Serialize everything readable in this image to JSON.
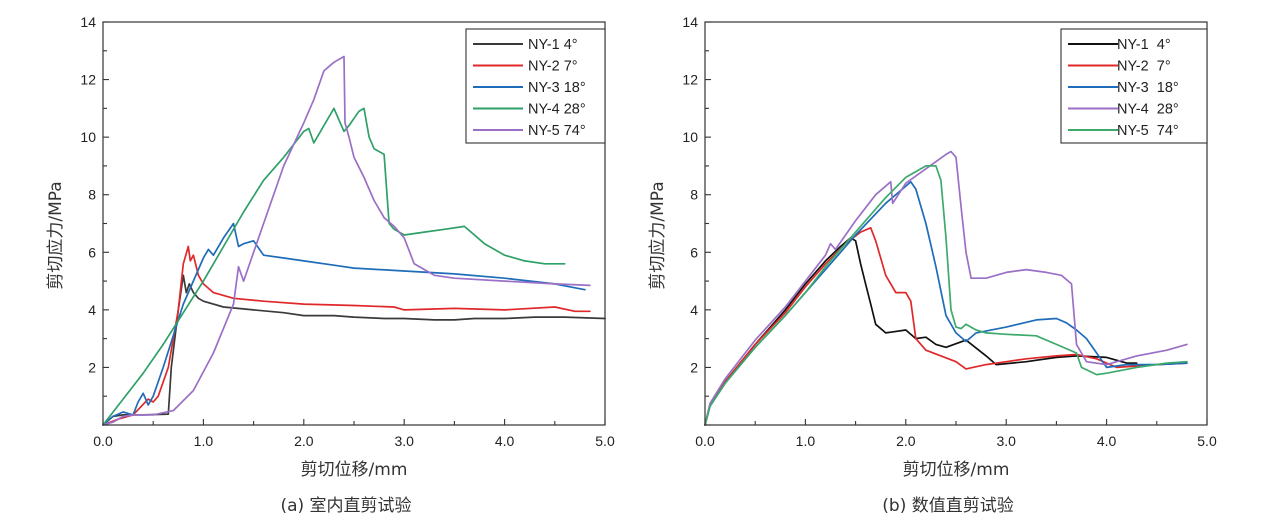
{
  "chart_data": [
    {
      "id": "a",
      "type": "line",
      "caption": "(a) 室内直剪试验",
      "xlabel": "剪切位移/mm",
      "ylabel": "剪切应力/MPa",
      "xlim": [
        0,
        5
      ],
      "ylim": [
        0,
        14
      ],
      "xticks": [
        "0.0",
        "1.0",
        "2.0",
        "3.0",
        "4.0",
        "5.0"
      ],
      "yticks": [
        "2",
        "4",
        "6",
        "8",
        "10",
        "12",
        "14"
      ],
      "legend_position": "top-right",
      "series": [
        {
          "name": "NY-1 4°",
          "color": "#3a3a3a",
          "x": [
            0,
            0.1,
            0.2,
            0.4,
            0.65,
            0.68,
            0.75,
            0.8,
            0.83,
            0.86,
            0.9,
            0.95,
            1.0,
            1.2,
            1.5,
            1.8,
            2.0,
            2.3,
            2.5,
            2.8,
            3.0,
            3.3,
            3.5,
            3.7,
            4.0,
            4.3,
            4.6,
            5.0
          ],
          "y": [
            0,
            0.3,
            0.35,
            0.35,
            0.38,
            2.0,
            4.0,
            5.2,
            4.6,
            4.9,
            4.6,
            4.4,
            4.3,
            4.1,
            4.0,
            3.9,
            3.8,
            3.8,
            3.75,
            3.7,
            3.7,
            3.65,
            3.65,
            3.7,
            3.7,
            3.75,
            3.75,
            3.7
          ]
        },
        {
          "name": "NY-2 7°",
          "color": "#e0282a",
          "x": [
            0,
            0.15,
            0.3,
            0.45,
            0.5,
            0.55,
            0.65,
            0.75,
            0.8,
            0.85,
            0.87,
            0.9,
            0.95,
            1.0,
            1.1,
            1.3,
            1.6,
            2.0,
            2.5,
            2.9,
            3.0,
            3.5,
            4.0,
            4.5,
            4.7,
            4.85
          ],
          "y": [
            0,
            0.2,
            0.35,
            0.9,
            0.8,
            1.0,
            2.0,
            4.0,
            5.6,
            6.2,
            5.7,
            5.9,
            5.2,
            4.9,
            4.6,
            4.4,
            4.3,
            4.2,
            4.15,
            4.1,
            4.0,
            4.05,
            4.0,
            4.1,
            3.95,
            3.95
          ]
        },
        {
          "name": "NY-3 18°",
          "color": "#1f6cb8",
          "x": [
            0,
            0.1,
            0.2,
            0.3,
            0.35,
            0.4,
            0.45,
            0.5,
            0.6,
            0.8,
            1.0,
            1.05,
            1.1,
            1.2,
            1.3,
            1.35,
            1.4,
            1.5,
            1.6,
            1.8,
            2.0,
            2.3,
            2.5,
            3.0,
            3.5,
            4.0,
            4.5,
            4.8
          ],
          "y": [
            0,
            0.3,
            0.45,
            0.35,
            0.8,
            1.1,
            0.7,
            1.0,
            2.0,
            4.2,
            5.8,
            6.1,
            5.9,
            6.5,
            7.0,
            6.2,
            6.3,
            6.4,
            5.9,
            5.8,
            5.7,
            5.55,
            5.45,
            5.35,
            5.25,
            5.1,
            4.9,
            4.7
          ]
        },
        {
          "name": "NY-4 28°",
          "color": "#2ea068",
          "x": [
            0,
            0.2,
            0.4,
            0.6,
            0.8,
            1.0,
            1.2,
            1.4,
            1.6,
            1.8,
            2.0,
            2.05,
            2.1,
            2.2,
            2.3,
            2.4,
            2.45,
            2.55,
            2.6,
            2.65,
            2.7,
            2.8,
            2.85,
            2.9,
            3.0,
            3.2,
            3.4,
            3.6,
            3.8,
            4.0,
            4.2,
            4.4,
            4.6
          ],
          "y": [
            0,
            0.9,
            1.8,
            2.8,
            3.9,
            5.0,
            6.2,
            7.4,
            8.5,
            9.3,
            10.2,
            10.3,
            9.8,
            10.4,
            11.0,
            10.2,
            10.4,
            10.9,
            11.0,
            10.0,
            9.6,
            9.4,
            7.0,
            6.8,
            6.6,
            6.7,
            6.8,
            6.9,
            6.3,
            5.9,
            5.7,
            5.6,
            5.6
          ]
        },
        {
          "name": "NY-5 74°",
          "color": "#9b6fc6",
          "x": [
            0,
            0.1,
            0.2,
            0.3,
            0.5,
            0.7,
            0.9,
            1.1,
            1.3,
            1.35,
            1.4,
            1.6,
            1.8,
            2.0,
            2.1,
            2.2,
            2.3,
            2.4,
            2.41,
            2.45,
            2.5,
            2.6,
            2.7,
            2.8,
            2.9,
            3.0,
            3.1,
            3.3,
            3.5,
            4.0,
            4.5,
            4.85
          ],
          "y": [
            0,
            0.1,
            0.3,
            0.35,
            0.35,
            0.5,
            1.2,
            2.5,
            4.2,
            5.5,
            5.0,
            7.0,
            9.0,
            10.5,
            11.3,
            12.3,
            12.6,
            12.8,
            10.5,
            10.0,
            9.3,
            8.6,
            7.8,
            7.2,
            6.9,
            6.5,
            5.6,
            5.2,
            5.1,
            5.0,
            4.9,
            4.85
          ]
        }
      ]
    },
    {
      "id": "b",
      "type": "line",
      "caption": "(b) 数值直剪试验",
      "xlabel": "剪切位移/mm",
      "ylabel": "剪切应力/MPa",
      "xlim": [
        0,
        5
      ],
      "ylim": [
        0,
        14
      ],
      "xticks": [
        "0.0",
        "1.0",
        "2.0",
        "3.0",
        "4.0",
        "5.0"
      ],
      "yticks": [
        "2",
        "4",
        "6",
        "8",
        "10",
        "12",
        "14"
      ],
      "legend_position": "top-right",
      "series": [
        {
          "name": "NY-1  4°",
          "color": "#111111",
          "x": [
            0,
            0.05,
            0.2,
            0.5,
            0.8,
            1.0,
            1.2,
            1.35,
            1.45,
            1.5,
            1.55,
            1.6,
            1.65,
            1.7,
            1.8,
            2.0,
            2.1,
            2.2,
            2.3,
            2.4,
            2.6,
            2.8,
            2.9,
            3.2,
            3.5,
            3.7,
            4.0,
            4.2,
            4.3
          ],
          "y": [
            0,
            0.7,
            1.5,
            2.8,
            4.0,
            4.9,
            5.7,
            6.2,
            6.5,
            6.4,
            5.6,
            4.9,
            4.2,
            3.5,
            3.2,
            3.3,
            3.0,
            3.05,
            2.8,
            2.7,
            2.95,
            2.4,
            2.1,
            2.2,
            2.35,
            2.4,
            2.35,
            2.15,
            2.15
          ]
        },
        {
          "name": "NY-2  7°",
          "color": "#e0282a",
          "x": [
            0,
            0.05,
            0.2,
            0.5,
            0.8,
            1.0,
            1.2,
            1.4,
            1.55,
            1.65,
            1.7,
            1.8,
            1.9,
            2.0,
            2.05,
            2.1,
            2.2,
            2.5,
            2.6,
            2.8,
            3.0,
            3.2,
            3.5,
            3.7,
            3.9,
            4.1,
            4.5,
            4.8
          ],
          "y": [
            0,
            0.7,
            1.5,
            2.8,
            3.9,
            4.8,
            5.6,
            6.3,
            6.7,
            6.85,
            6.4,
            5.2,
            4.6,
            4.6,
            4.3,
            3.0,
            2.6,
            2.2,
            1.95,
            2.1,
            2.2,
            2.3,
            2.4,
            2.45,
            2.3,
            2.0,
            2.1,
            2.15
          ]
        },
        {
          "name": "NY-3  18°",
          "color": "#1f6cb8",
          "x": [
            0,
            0.05,
            0.2,
            0.5,
            0.8,
            1.0,
            1.2,
            1.5,
            1.8,
            2.0,
            2.05,
            2.1,
            2.2,
            2.3,
            2.4,
            2.5,
            2.6,
            2.7,
            3.0,
            3.3,
            3.5,
            3.6,
            3.7,
            3.8,
            3.9,
            4.0,
            4.2,
            4.5,
            4.8
          ],
          "y": [
            0,
            0.65,
            1.45,
            2.7,
            3.8,
            4.6,
            5.4,
            6.6,
            7.7,
            8.3,
            8.45,
            8.2,
            7.0,
            5.5,
            3.8,
            3.2,
            2.9,
            3.2,
            3.4,
            3.65,
            3.7,
            3.55,
            3.3,
            3.0,
            2.5,
            2.0,
            2.1,
            2.1,
            2.15
          ]
        },
        {
          "name": "NY-4  28°",
          "color": "#9b6fc6",
          "x": [
            0,
            0.05,
            0.2,
            0.5,
            0.8,
            1.0,
            1.2,
            1.25,
            1.3,
            1.5,
            1.7,
            1.85,
            1.87,
            2.0,
            2.2,
            2.4,
            2.45,
            2.5,
            2.55,
            2.6,
            2.65,
            2.8,
            3.0,
            3.2,
            3.4,
            3.55,
            3.65,
            3.7,
            3.8,
            4.0,
            4.3,
            4.6,
            4.8
          ],
          "y": [
            0,
            0.75,
            1.6,
            2.95,
            4.1,
            5.0,
            5.9,
            6.3,
            6.1,
            7.1,
            8.0,
            8.45,
            7.7,
            8.4,
            8.9,
            9.4,
            9.5,
            9.3,
            7.6,
            6.0,
            5.1,
            5.1,
            5.3,
            5.4,
            5.3,
            5.2,
            4.9,
            2.8,
            2.2,
            2.1,
            2.4,
            2.6,
            2.8
          ]
        },
        {
          "name": "NY-5  74°",
          "color": "#3daa6c",
          "x": [
            0,
            0.05,
            0.2,
            0.5,
            0.8,
            1.0,
            1.2,
            1.5,
            1.8,
            2.0,
            2.2,
            2.3,
            2.35,
            2.4,
            2.45,
            2.5,
            2.55,
            2.6,
            2.7,
            2.8,
            3.0,
            3.3,
            3.5,
            3.7,
            3.75,
            3.9,
            4.0,
            4.3,
            4.6,
            4.8
          ],
          "y": [
            0,
            0.65,
            1.45,
            2.7,
            3.8,
            4.6,
            5.5,
            6.7,
            7.9,
            8.6,
            9.0,
            9.0,
            8.5,
            6.5,
            4.0,
            3.4,
            3.35,
            3.5,
            3.3,
            3.2,
            3.15,
            3.1,
            2.8,
            2.5,
            2.0,
            1.75,
            1.8,
            2.0,
            2.15,
            2.2
          ]
        }
      ]
    }
  ]
}
